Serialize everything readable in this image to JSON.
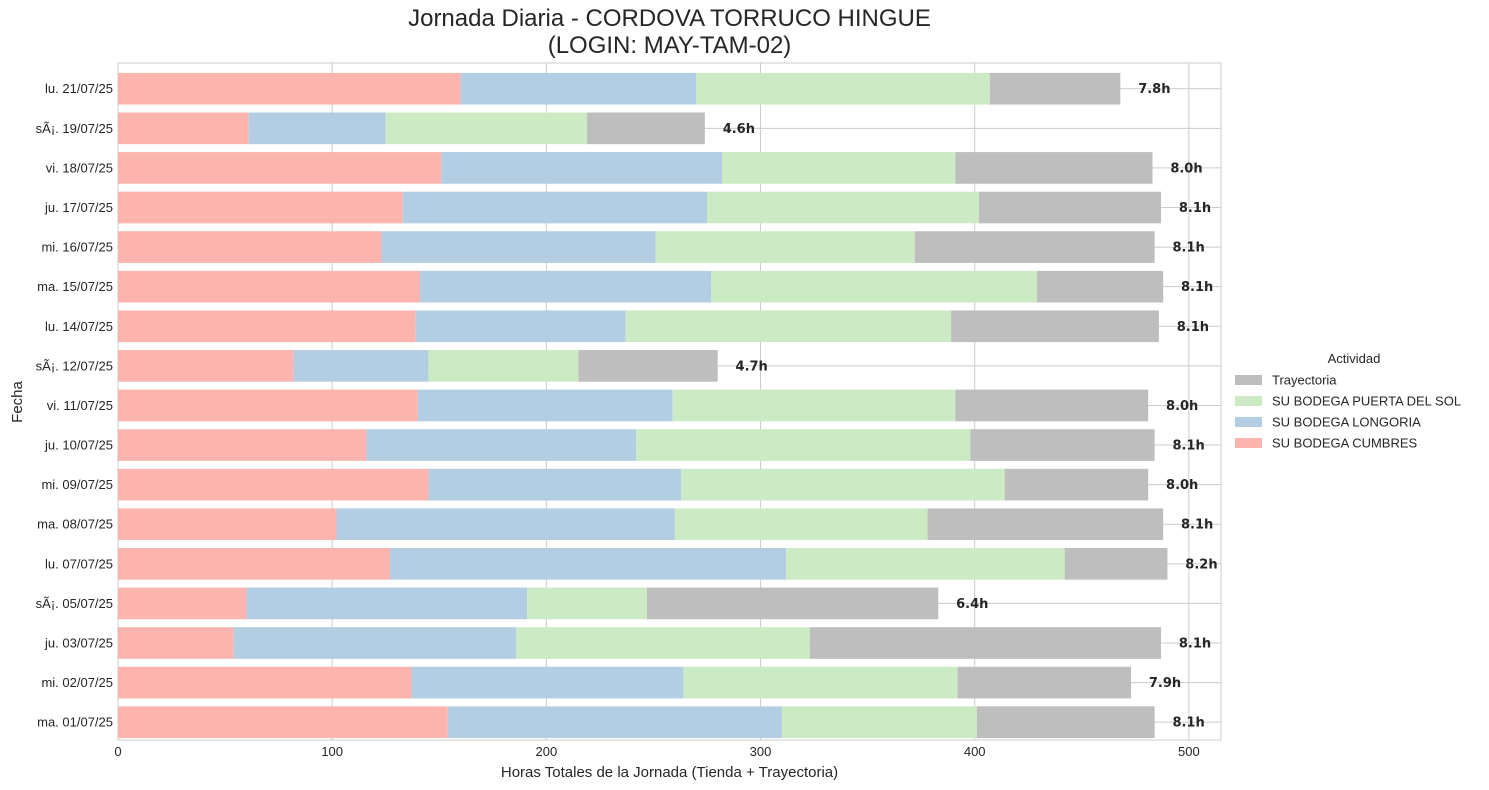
{
  "chart_data": {
    "type": "bar",
    "orientation": "horizontal",
    "stacked": true,
    "title_lines": [
      "Jornada Diaria - CORDOVA TORRUCO HINGUE",
      "(LOGIN: MAY-TAM-02)"
    ],
    "xlabel": "Horas Totales de la Jornada (Tienda + Trayectoria)",
    "ylabel": "Fecha",
    "xlim": [
      0,
      515
    ],
    "xticks": [
      0,
      100,
      200,
      300,
      400,
      500
    ],
    "grid": true,
    "legend": {
      "title": "Actividad",
      "placement": "center-right outside"
    },
    "categories": [
      "lu. 21/07/25",
      "sÃ¡. 19/07/25",
      "vi. 18/07/25",
      "ju. 17/07/25",
      "mi. 16/07/25",
      "ma. 15/07/25",
      "lu. 14/07/25",
      "sÃ¡. 12/07/25",
      "vi. 11/07/25",
      "ju. 10/07/25",
      "mi. 09/07/25",
      "ma. 08/07/25",
      "lu. 07/07/25",
      "sÃ¡. 05/07/25",
      "ju. 03/07/25",
      "mi. 02/07/25",
      "ma. 01/07/25"
    ],
    "series": [
      {
        "name": "SU BODEGA CUMBRES",
        "color": "#fbb4ae",
        "values": [
          160,
          61,
          151,
          133,
          123,
          141,
          139,
          82,
          140,
          116,
          145,
          102,
          127,
          60,
          54,
          137,
          154
        ]
      },
      {
        "name": "SU BODEGA LONGORIA",
        "color": "#b3cde3",
        "values": [
          110,
          64,
          131,
          142,
          128,
          136,
          98,
          63,
          119,
          126,
          118,
          158,
          185,
          131,
          132,
          127,
          156
        ]
      },
      {
        "name": "SU BODEGA PUERTA DEL SOL",
        "color": "#ccebc5",
        "values": [
          137,
          94,
          109,
          127,
          121,
          152,
          152,
          70,
          132,
          156,
          151,
          118,
          130,
          56,
          137,
          128,
          91
        ]
      },
      {
        "name": "Trayectoria",
        "color": "#bebebe",
        "values": [
          61,
          55,
          92,
          85,
          112,
          59,
          97,
          65,
          90,
          86,
          67,
          110,
          48,
          136,
          164,
          81,
          83
        ]
      }
    ],
    "legend_order": [
      "Trayectoria",
      "SU BODEGA PUERTA DEL SOL",
      "SU BODEGA LONGORIA",
      "SU BODEGA CUMBRES"
    ],
    "total_labels": [
      "7.8h",
      "4.6h",
      "8.0h",
      "8.1h",
      "8.1h",
      "8.1h",
      "8.1h",
      "4.7h",
      "8.0h",
      "8.1h",
      "8.0h",
      "8.1h",
      "8.2h",
      "6.4h",
      "8.1h",
      "7.9h",
      "8.1h"
    ]
  }
}
